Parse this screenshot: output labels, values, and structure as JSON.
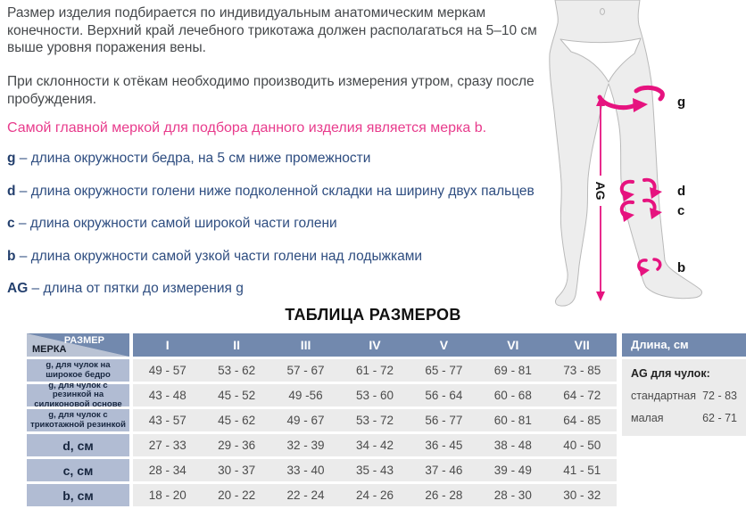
{
  "intro": {
    "p1": "Размер изделия подбирается по индивидуальным анатомическим меркам конечности. Верхний край лечебного трикотажа должен располагаться на 5–10 см выше уровня поражения вены.",
    "p2": "При склонности к отёкам необходимо производить измерения утром, сразу после пробуждения.",
    "highlight": "Самой главной меркой для подбора данного изделия является мерка b."
  },
  "measurements": [
    {
      "key": "g",
      "desc": "– длина окружности бедра, на 5 см ниже промежности"
    },
    {
      "key": "d",
      "desc": "– длина окружности голени ниже подколенной складки на ширину двух пальцев"
    },
    {
      "key": "c",
      "desc": "– длина окружности самой широкой части голени"
    },
    {
      "key": "b",
      "desc": "– длина окружности самой узкой части голени над лодыжками"
    },
    {
      "key": "AG",
      "desc": "– длина от пятки до измерения g"
    }
  ],
  "diagram": {
    "labels": {
      "g": "g",
      "d": "d",
      "c": "c",
      "b": "b",
      "ag": "AG"
    }
  },
  "table": {
    "title": "ТАБЛИЦА РАЗМЕРОВ",
    "corner": {
      "top": "РАЗМЕР",
      "bottom": "МЕРКА"
    },
    "columns": [
      "I",
      "II",
      "III",
      "IV",
      "V",
      "VI",
      "VII"
    ],
    "rows": [
      {
        "label": "g, для чулок на широкое бедро",
        "small": true,
        "values": [
          "49 - 57",
          "53 - 62",
          "57 - 67",
          "61 - 72",
          "65 - 77",
          "69 - 81",
          "73 - 85"
        ]
      },
      {
        "label": "g, для чулок с  резинкой на силиконовой основе",
        "small": true,
        "values": [
          "43 - 48",
          "45 - 52",
          "49 -56",
          "53 - 60",
          "56 - 64",
          "60 - 68",
          "64 - 72"
        ]
      },
      {
        "label": "g, для чулок с трикотажной резинкой",
        "small": true,
        "values": [
          "43 - 57",
          "45 - 62",
          "49 - 67",
          "53 - 72",
          "56 - 77",
          "60 - 81",
          "64 - 85"
        ]
      },
      {
        "label": "d, см",
        "small": false,
        "values": [
          "27 - 33",
          "29 - 36",
          "32 - 39",
          "34 - 42",
          "36 - 45",
          "38 - 48",
          "40 - 50"
        ]
      },
      {
        "label": "c, см",
        "small": false,
        "values": [
          "28 - 34",
          "30 - 37",
          "33 - 40",
          "35 - 43",
          "37 - 46",
          "39 - 49",
          "41 - 51"
        ]
      },
      {
        "label": "b, см",
        "small": false,
        "values": [
          "18 - 20",
          "20 - 22",
          "22 - 24",
          "24 - 26",
          "26 - 28",
          "28 - 30",
          "30 - 32"
        ]
      }
    ]
  },
  "side_panel": {
    "header": "Длина, см",
    "subtitle": "AG для чулок:",
    "rows": [
      {
        "label": "стандартная",
        "value": "72 - 83"
      },
      {
        "label": "малая",
        "value": "62 - 71"
      }
    ]
  },
  "colors": {
    "accent_pink": "#e6137f",
    "highlight_text": "#e83b8c",
    "header_blue": "#7289ae",
    "label_blue": "#b1bcd3",
    "corner_light": "#bac3d4",
    "row_gray": "#ebebeb",
    "def_text_blue": "#2e4d80",
    "body_fill": "#ededed",
    "body_stroke": "#b9b9b9"
  }
}
